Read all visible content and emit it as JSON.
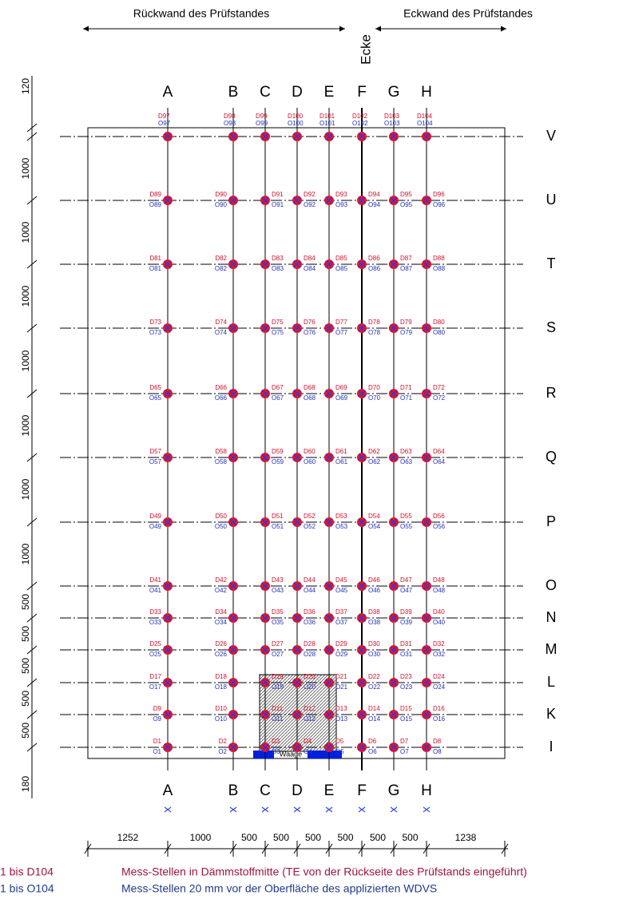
{
  "header": {
    "left_wall": "Rückwand des Prüfstandes",
    "corner_wall": "Eckwand des Prüfstandes",
    "corner": "Ecke"
  },
  "columns": [
    "A",
    "B",
    "C",
    "D",
    "E",
    "F",
    "G",
    "H"
  ],
  "rows": [
    {
      "label": "V",
      "d": [
        "D97",
        "D98",
        "D99",
        "D100",
        "D101",
        "D102",
        "D103",
        "D104"
      ],
      "o": [
        "O97",
        "O98",
        "O99",
        "O100",
        "O101",
        "O102",
        "O103",
        "O104"
      ]
    },
    {
      "label": "U",
      "d": [
        "D89",
        "D90",
        "D91",
        "D92",
        "D93",
        "D94",
        "D95",
        "D96"
      ],
      "o": [
        "O89",
        "O90",
        "O91",
        "O92",
        "O93",
        "O94",
        "O95",
        "O96"
      ]
    },
    {
      "label": "T",
      "d": [
        "D81",
        "D82",
        "D83",
        "D84",
        "D85",
        "D86",
        "D87",
        "D88"
      ],
      "o": [
        "O81",
        "O82",
        "O83",
        "O84",
        "O85",
        "O86",
        "O87",
        "O88"
      ]
    },
    {
      "label": "S",
      "d": [
        "D73",
        "D74",
        "D75",
        "D76",
        "D77",
        "D78",
        "D79",
        "D80"
      ],
      "o": [
        "O73",
        "O74",
        "O75",
        "O76",
        "O77",
        "O78",
        "O79",
        "O80"
      ]
    },
    {
      "label": "R",
      "d": [
        "D65",
        "D66",
        "D67",
        "D68",
        "D69",
        "D70",
        "D71",
        "D72"
      ],
      "o": [
        "O65",
        "O66",
        "O67",
        "O68",
        "O69",
        "O70",
        "O71",
        "O72"
      ]
    },
    {
      "label": "Q",
      "d": [
        "D57",
        "D58",
        "D59",
        "D60",
        "D61",
        "D62",
        "D63",
        "D64"
      ],
      "o": [
        "O57",
        "O58",
        "O59",
        "O60",
        "O61",
        "O62",
        "O63",
        "O64"
      ]
    },
    {
      "label": "P",
      "d": [
        "D49",
        "D50",
        "D51",
        "D52",
        "D53",
        "D54",
        "D55",
        "D56"
      ],
      "o": [
        "O49",
        "O50",
        "O51",
        "O52",
        "O53",
        "O54",
        "O55",
        "O56"
      ]
    },
    {
      "label": "O",
      "d": [
        "D41",
        "D42",
        "D43",
        "D44",
        "D45",
        "D46",
        "D47",
        "D48"
      ],
      "o": [
        "O41",
        "O42",
        "O43",
        "O44",
        "O45",
        "O46",
        "O47",
        "O48"
      ]
    },
    {
      "label": "N",
      "d": [
        "D33",
        "D34",
        "D35",
        "D36",
        "D37",
        "D38",
        "D39",
        "D40"
      ],
      "o": [
        "O33",
        "O34",
        "O35",
        "O36",
        "O37",
        "O38",
        "O39",
        "O40"
      ]
    },
    {
      "label": "M",
      "d": [
        "D25",
        "D26",
        "D27",
        "D28",
        "D29",
        "D30",
        "D31",
        "D32"
      ],
      "o": [
        "O25",
        "O26",
        "O27",
        "O28",
        "O29",
        "O30",
        "O31",
        "O32"
      ]
    },
    {
      "label": "L",
      "d": [
        "D17",
        "D18",
        "D19",
        "D20",
        "D21",
        "D22",
        "D23",
        "D24"
      ],
      "o": [
        "O17",
        "O18",
        "O19",
        "O20",
        "O21",
        "O22",
        "O23",
        "O24"
      ]
    },
    {
      "label": "K",
      "d": [
        "D9",
        "D10",
        "D11",
        "D12",
        "D13",
        "D14",
        "D15",
        "D16"
      ],
      "o": [
        "O9",
        "O10",
        "O11",
        "O12",
        "O13",
        "O14",
        "O15",
        "O16"
      ]
    },
    {
      "label": "I",
      "d": [
        "D1",
        "D2",
        "D3",
        "D4",
        "D5",
        "D6",
        "D7",
        "D8"
      ],
      "o": [
        "O1",
        "O2",
        "O3",
        "O4",
        "O5",
        "O6",
        "O7",
        "O8"
      ]
    }
  ],
  "vertical_dimensions": [
    120,
    1000,
    1000,
    1000,
    1000,
    1000,
    1000,
    1000,
    500,
    500,
    500,
    500,
    500,
    180
  ],
  "horizontal_dimensions": [
    1252,
    1000,
    500,
    500,
    500,
    500,
    500,
    500,
    1238
  ],
  "scale_label": "Waage",
  "legend": [
    {
      "range": "1 bis D104",
      "description": "Mess-Stellen in Dämmstoffmitte (TE von der Rückseite des Prüfstands eingeführt)"
    },
    {
      "range": "1 bis O104",
      "description": "Mess-Stellen 20 mm vor der Oberfläche des applizierten WDVS"
    }
  ]
}
